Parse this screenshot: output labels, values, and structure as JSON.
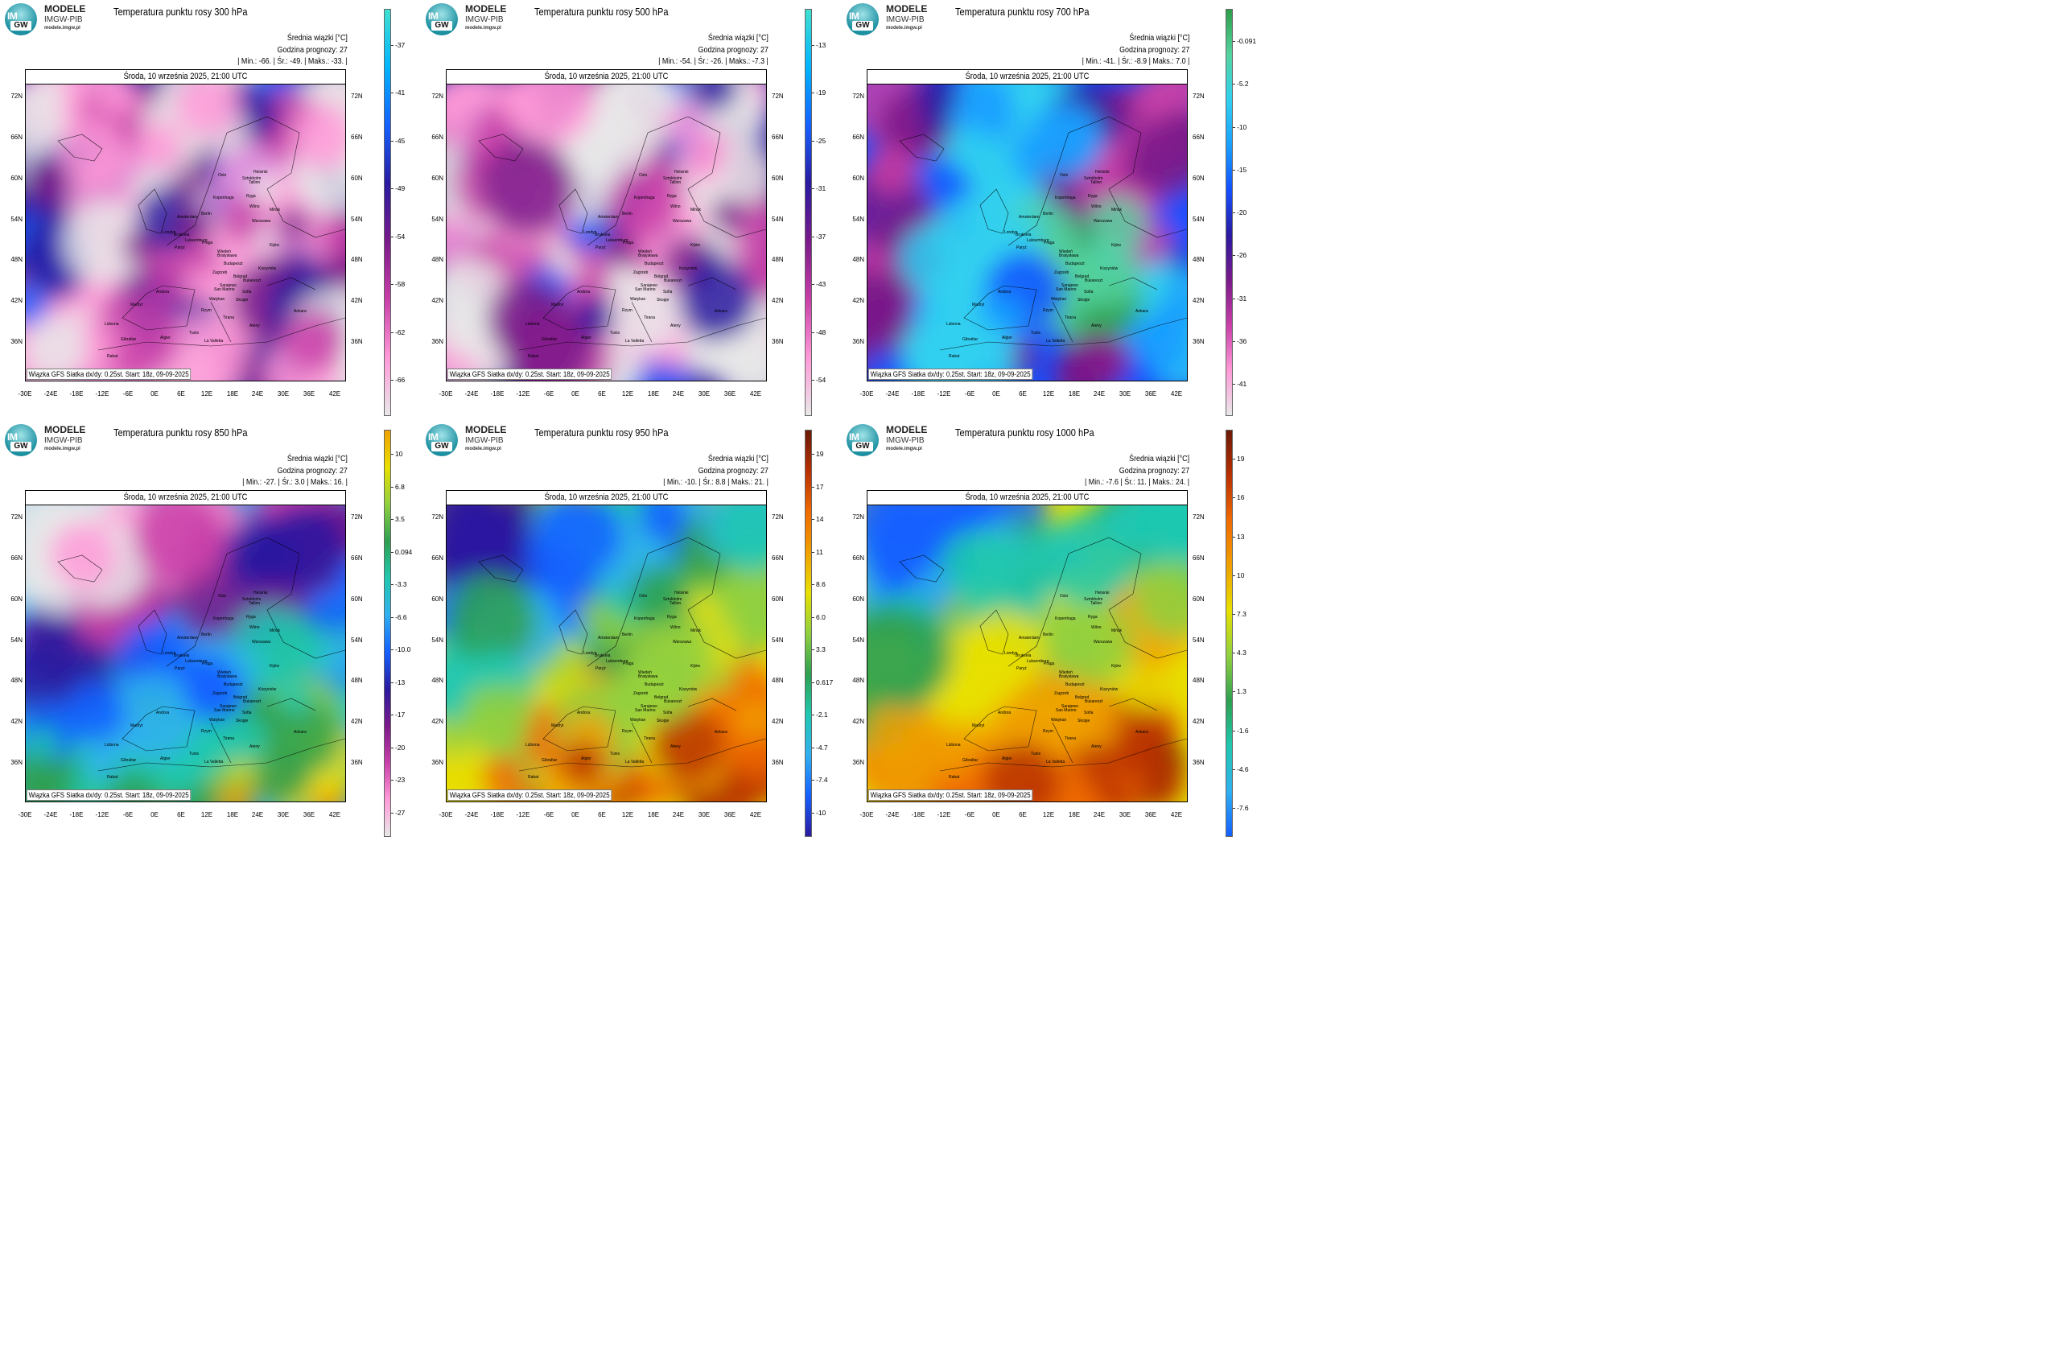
{
  "brand": {
    "logo_top": "IM",
    "logo_bottom": "GW",
    "line1": "MODELE",
    "line2": "IMGW-PIB",
    "line3": "modele.imgw.pl"
  },
  "common": {
    "date_label": "Środa, 10 września 2025, 21:00 UTC",
    "stat_title": "Średnia wiązki [°C]",
    "forecast_hour": "Godzina prognozy: 27",
    "source": "Wiązka GFS Siatka dx/dy: 0.25st. Start: 18z, 09-09-2025",
    "lat_labels": [
      "72N",
      "66N",
      "60N",
      "54N",
      "48N",
      "42N",
      "36N"
    ],
    "lon_labels": [
      "-30E",
      "-24E",
      "-18E",
      "-12E",
      "-6E",
      "0E",
      "6E",
      "12E",
      "18E",
      "24E",
      "30E",
      "36E",
      "42E"
    ],
    "cities": [
      "Oslo",
      "Sztokholm",
      "Helsinki",
      "Tallinn",
      "Ryga",
      "Wilno",
      "Kopenhaga",
      "Mińsk",
      "Amsterdam",
      "Berlin",
      "Warszawa",
      "Londyn",
      "Bruksela",
      "Luksemburg",
      "Paryż",
      "Praga",
      "Wiedeń",
      "Bratysława",
      "Kijów",
      "Budapeszt",
      "Zagrzeb",
      "Belgrad",
      "Kiszyniów",
      "San Marino",
      "Sarajewo",
      "Bukareszt",
      "Andora",
      "Watykan",
      "Sofia",
      "Madryt",
      "Skopje",
      "Lizbona",
      "Rzym",
      "Tirana",
      "Gibraltar",
      "Tunis",
      "Algier",
      "La Valletta",
      "Rabat",
      "Ateny",
      "Ankara"
    ]
  },
  "panels": [
    {
      "title": "Temperatura punktu rosy 300 hPa",
      "stats": "| Min.:    -66. | Śr.:    -49. | Maks.:    -33. |",
      "colorbar": {
        "labels": [
          "-37",
          "-41",
          "-45",
          "-49",
          "-54",
          "-58",
          "-62",
          "-66"
        ],
        "colors": [
          "#40e0d0",
          "#00b4ff",
          "#1460ff",
          "#2a1aa0",
          "#7a1a8a",
          "#c83fa8",
          "#ff9ad8",
          "#e8e8e8"
        ]
      }
    },
    {
      "title": "Temperatura punktu rosy 500 hPa",
      "stats": "| Min.:    -54. | Śr.:    -26. | Maks.:    -7.3 |",
      "colorbar": {
        "labels": [
          "-13",
          "-19",
          "-25",
          "-31",
          "-37",
          "-43",
          "-48",
          "-54"
        ],
        "colors": [
          "#40e0d0",
          "#00b4ff",
          "#1460ff",
          "#2a1aa0",
          "#7a1a8a",
          "#c83fa8",
          "#ff9ad8",
          "#e8e8e8"
        ]
      }
    },
    {
      "title": "Temperatura punktu rosy 700 hPa",
      "stats": "| Min.:    -41. | Śr.:    -8.9 | Maks.:    7.0 |",
      "colorbar": {
        "labels": [
          "-0.091",
          "-5.2",
          "-10",
          "-15",
          "-20",
          "-26",
          "-31",
          "-36",
          "-41"
        ],
        "colors": [
          "#2e9e4a",
          "#56d4a0",
          "#30d0f0",
          "#1aa0ff",
          "#1450ff",
          "#2a1aa0",
          "#7a1a8a",
          "#c83fa8",
          "#ff9ad8",
          "#e8e8e8"
        ]
      }
    },
    {
      "title": "Temperatura punktu rosy 850 hPa",
      "stats": "| Min.:    -27. | Śr.:    3.0 | Maks.:    16. |",
      "colorbar": {
        "labels": [
          "10",
          "6.8",
          "3.5",
          "0.094",
          "-3.3",
          "-6.6",
          "-10.0",
          "-13",
          "-17",
          "-20",
          "-23",
          "-27"
        ],
        "colors": [
          "#f0a000",
          "#e8e000",
          "#90d040",
          "#2ea050",
          "#20c8b0",
          "#30b0f0",
          "#1460ff",
          "#2a1aa0",
          "#7a1a8a",
          "#c83fa8",
          "#ff9ad8",
          "#e8e8e8"
        ]
      }
    },
    {
      "title": "Temperatura punktu rosy 950 hPa",
      "stats": "| Min.:    -10. | Śr.:    8.8 | Maks.:    21. |",
      "colorbar": {
        "labels": [
          "19",
          "17",
          "14",
          "11",
          "8.6",
          "6.0",
          "3.3",
          "0.617",
          "-2.1",
          "-4.7",
          "-7.4",
          "-10"
        ],
        "colors": [
          "#6a1a08",
          "#b83000",
          "#f06a00",
          "#f0a000",
          "#e8e000",
          "#90d040",
          "#2ea050",
          "#20c8b0",
          "#30b0f0",
          "#1460ff",
          "#2a1aa0"
        ]
      }
    },
    {
      "title": "Temperatura punktu rosy 1000 hPa",
      "stats": "| Min.:    -7.6 | Śr.:    11. | Maks.:    24. |",
      "colorbar": {
        "labels": [
          "19",
          "16",
          "13",
          "10",
          "7.3",
          "4.3",
          "1.3",
          "-1.6",
          "-4.6",
          "-7.6"
        ],
        "colors": [
          "#6a1a08",
          "#b83000",
          "#f06a00",
          "#f0a000",
          "#e8e000",
          "#90d040",
          "#2ea050",
          "#20c8b0",
          "#30b0f0",
          "#1460ff"
        ]
      }
    }
  ]
}
